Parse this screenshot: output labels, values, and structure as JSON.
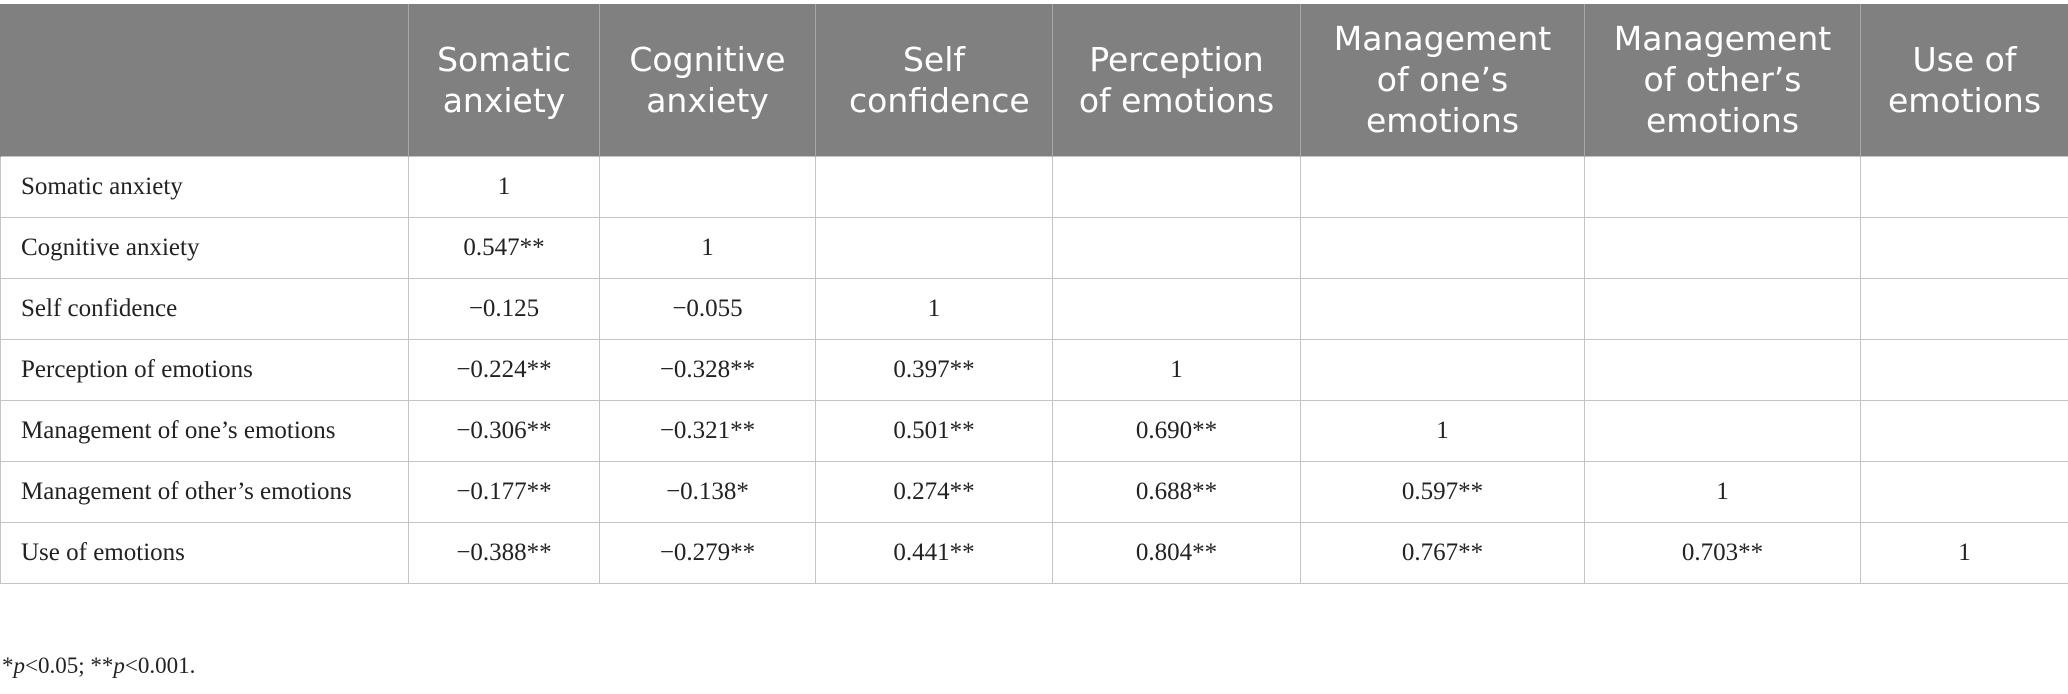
{
  "table": {
    "header": [
      "",
      "Somatic anxiety",
      "Cognitive anxiety",
      "Self confidence",
      "Perception of emotions",
      "Management of one’s emotions",
      "Management of other’s emotions",
      "Use of emotions"
    ],
    "rows": [
      {
        "label": "Somatic anxiety",
        "cells": [
          "1",
          "",
          "",
          "",
          "",
          "",
          ""
        ]
      },
      {
        "label": "Cognitive anxiety",
        "cells": [
          "0.547**",
          "1",
          "",
          "",
          "",
          "",
          ""
        ]
      },
      {
        "label": "Self confidence",
        "cells": [
          "−0.125",
          "−0.055",
          "1",
          "",
          "",
          "",
          ""
        ]
      },
      {
        "label": "Perception of emotions",
        "cells": [
          "−0.224**",
          "−0.328**",
          "0.397**",
          "1",
          "",
          "",
          ""
        ]
      },
      {
        "label": "Management of one’s emotions",
        "cells": [
          "−0.306**",
          "−0.321**",
          "0.501**",
          "0.690**",
          "1",
          "",
          ""
        ]
      },
      {
        "label": "Management of other’s emotions",
        "cells": [
          "−0.177**",
          "−0.138*",
          "0.274**",
          "0.688**",
          "0.597**",
          "1",
          ""
        ]
      },
      {
        "label": "Use of emotions",
        "cells": [
          "−0.388**",
          "−0.279**",
          "0.441**",
          "0.804**",
          "0.767**",
          "0.703**",
          "1"
        ]
      }
    ]
  },
  "footnote": {
    "star1": "*",
    "p1": "p",
    "t1": "<0.05; **",
    "p2": "p",
    "t2": "<0.001."
  }
}
